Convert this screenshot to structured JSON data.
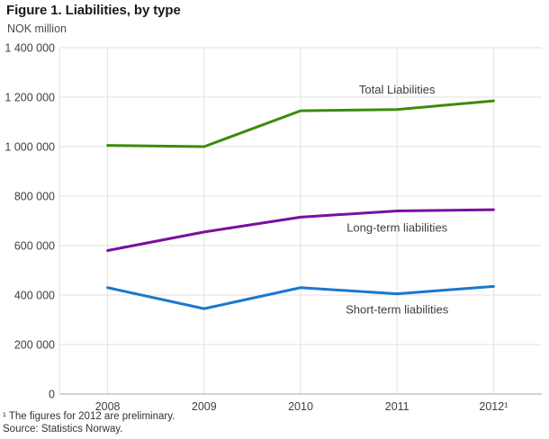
{
  "header": {
    "title": "Figure 1. Liabilities, by type",
    "unit_label": "NOK million"
  },
  "chart_data": {
    "type": "line",
    "title": "Figure 1. Liabilities, by type",
    "ylabel": "NOK million",
    "xlabel": "",
    "categories": [
      "2008",
      "2009",
      "2010",
      "2011",
      "2012¹"
    ],
    "series": [
      {
        "name": "Total Liabilities",
        "color": "#3C8C0A",
        "values": [
          1005000,
          1000000,
          1145000,
          1150000,
          1185000
        ],
        "label_dy": -18
      },
      {
        "name": "Long-term liabilities",
        "color": "#7A0F9E",
        "values": [
          580000,
          655000,
          715000,
          740000,
          745000
        ],
        "label_dy": 23
      },
      {
        "name": "Short-term liabilities",
        "color": "#1978CD",
        "values": [
          430000,
          345000,
          430000,
          405000,
          435000
        ],
        "label_dy": 22
      }
    ],
    "ylim": [
      0,
      1400000
    ],
    "ytick_step": 200000,
    "ytick_labels": [
      "0",
      "200 000",
      "400 000",
      "600 000",
      "800 000",
      "1 000 000",
      "1 200 000",
      "1 400 000"
    ],
    "grid": true,
    "legend_position": "inline-labels-near-2011"
  },
  "footnotes": {
    "note1": "¹ The figures for 2012 are preliminary.",
    "note2": "Source: Statistics Norway."
  },
  "colors": {
    "grid": "#e2e2e2",
    "axis_line": "#a6a6a6",
    "tick_text": "#404040",
    "series_label_text": "#3d3d3d",
    "title_text": "#1a1a1a",
    "footnote_text": "#333333"
  }
}
